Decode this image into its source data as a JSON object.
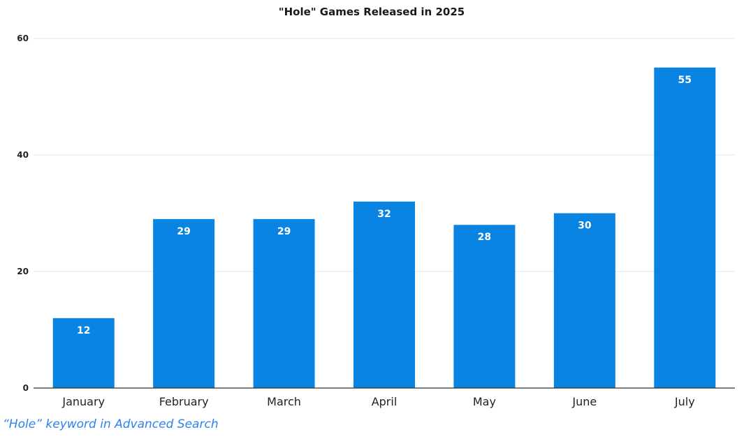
{
  "chart_data": {
    "type": "bar",
    "title": "\"Hole\" Games Released in 2025",
    "xlabel": "",
    "ylabel": "",
    "categories": [
      "January",
      "February",
      "March",
      "April",
      "May",
      "June",
      "July"
    ],
    "values": [
      12,
      29,
      29,
      32,
      28,
      30,
      55
    ],
    "ylim": [
      0,
      60
    ],
    "yticks": [
      0,
      20,
      40,
      60
    ],
    "grid": true,
    "legend": "none",
    "bar_color": "#0984e3",
    "data_labels": true
  },
  "caption": "“Hole” keyword in Advanced Search",
  "colors": {
    "caption": "#2f80ed",
    "grid": "#e6e6e6",
    "axis": "#333333"
  }
}
